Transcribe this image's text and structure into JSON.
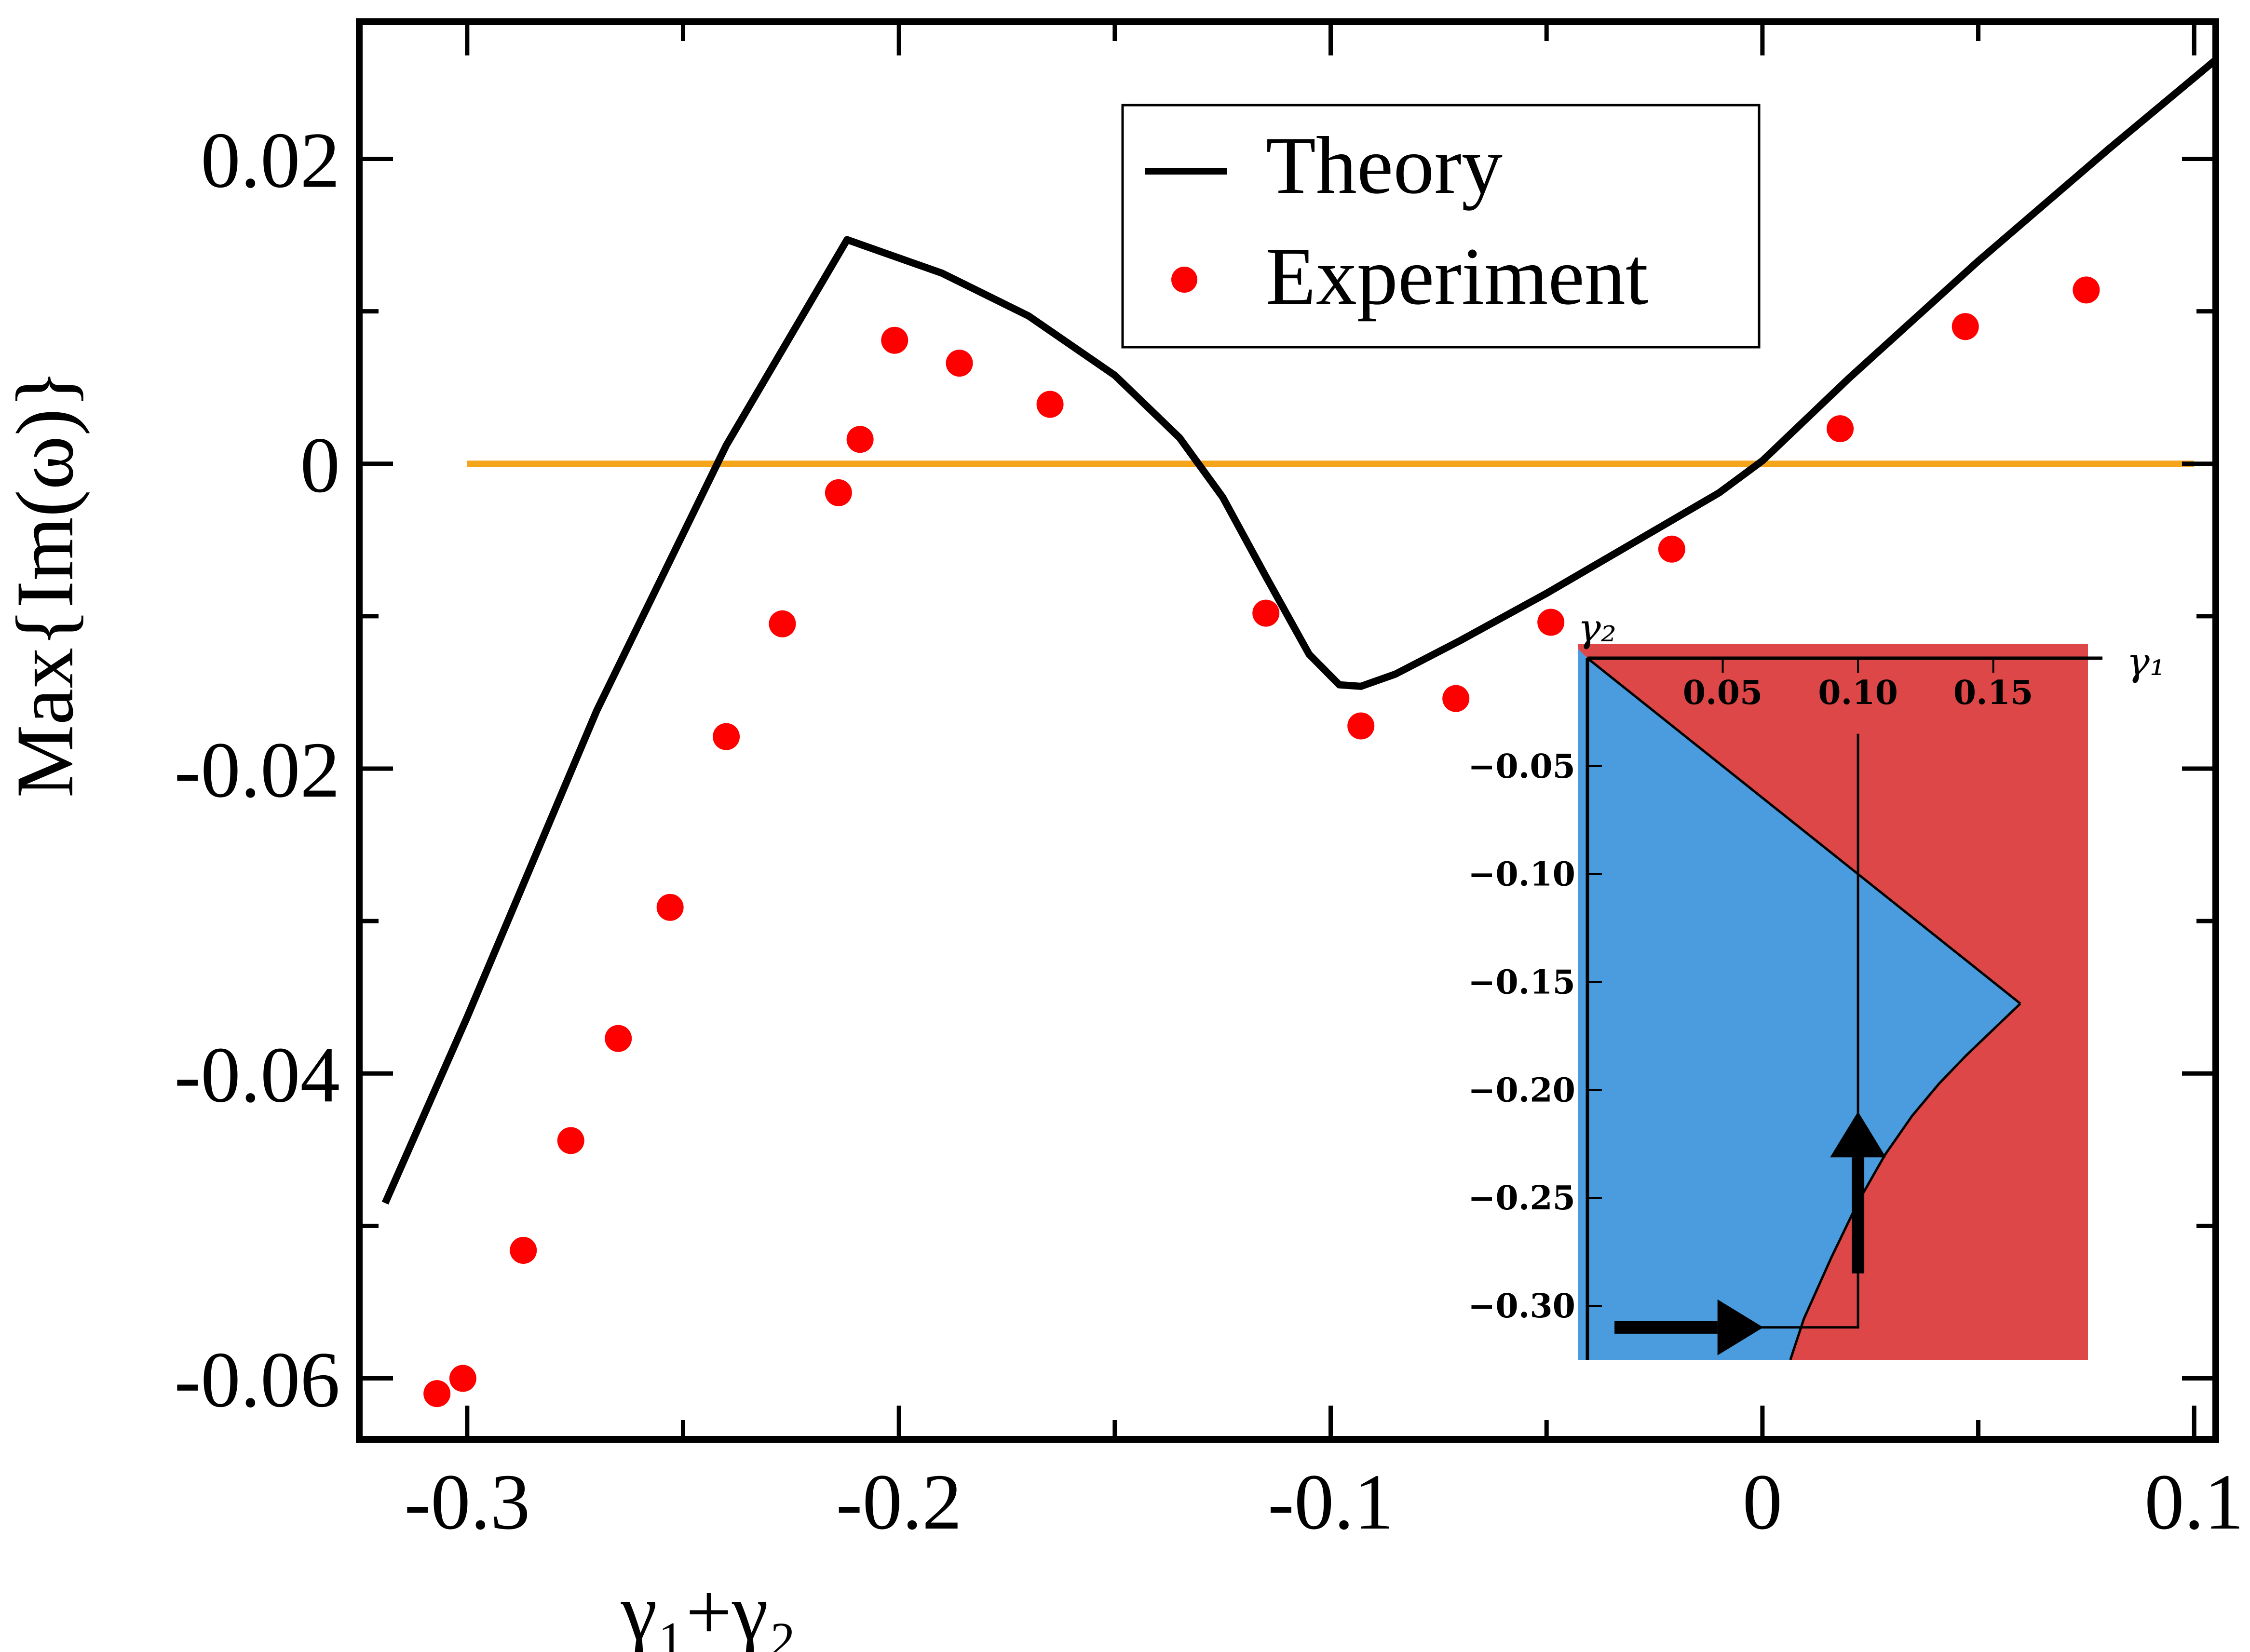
{
  "chart_data": {
    "type": "line",
    "title": "",
    "xlabel": "γ₁+γ₂",
    "ylabel": "Max{Im(ω)}",
    "xlim": [
      -0.325,
      0.105
    ],
    "ylim": [
      -0.064,
      0.029
    ],
    "xticks": [
      -0.3,
      -0.2,
      -0.1,
      0,
      0.1
    ],
    "xtick_labels": [
      "-0.3",
      "-0.2",
      "-0.1",
      "0",
      "0.1"
    ],
    "yticks": [
      -0.06,
      -0.04,
      -0.02,
      0,
      0.02
    ],
    "ytick_labels": [
      "-0.06",
      "-0.04",
      "-0.02",
      "0",
      "0.02"
    ],
    "zero_line": {
      "y": 0,
      "color": "#f4a51c"
    },
    "legend": {
      "position": "top-right",
      "entries": [
        {
          "label": "Theory",
          "style": "line",
          "color": "#000000"
        },
        {
          "label": "Experiment",
          "style": "marker",
          "color": "#ff0000"
        }
      ]
    },
    "series": [
      {
        "name": "Theory",
        "type": "line",
        "color": "#000000",
        "x": [
          -0.319,
          -0.3,
          -0.27,
          -0.24,
          -0.212,
          -0.19,
          -0.17,
          -0.15,
          -0.135,
          -0.125,
          -0.115,
          -0.105,
          -0.098,
          -0.093,
          -0.085,
          -0.07,
          -0.05,
          -0.03,
          -0.01,
          0,
          0.02,
          0.05,
          0.08,
          0.105
        ],
        "y": [
          -0.0485,
          -0.0363,
          -0.0162,
          0.0012,
          0.0147,
          0.0125,
          0.0097,
          0.0058,
          0.0017,
          -0.0022,
          -0.0074,
          -0.0125,
          -0.0145,
          -0.0146,
          -0.0138,
          -0.0116,
          -0.0085,
          -0.0052,
          -0.0019,
          0.0002,
          0.0056,
          0.0133,
          0.0206,
          0.0265
        ]
      },
      {
        "name": "Experiment",
        "type": "scatter",
        "color": "#ff0000",
        "x": [
          -0.307,
          -0.301,
          -0.287,
          -0.276,
          -0.265,
          -0.253,
          -0.24,
          -0.227,
          -0.214,
          -0.209,
          -0.201,
          -0.186,
          -0.165,
          -0.115,
          -0.093,
          -0.071,
          -0.049,
          -0.021,
          0.018,
          0.047,
          0.075
        ],
        "y": [
          -0.061,
          -0.06,
          -0.0516,
          -0.0444,
          -0.0377,
          -0.0291,
          -0.0179,
          -0.0105,
          -0.0019,
          0.0016,
          0.0081,
          0.0066,
          0.0039,
          -0.0098,
          -0.0172,
          -0.0154,
          -0.0104,
          -0.0056,
          0.0023,
          0.009,
          0.0114
        ]
      }
    ],
    "inset": {
      "type": "region-map",
      "xlabel": "γ₁",
      "ylabel": "γ₂",
      "xlim": [
        0,
        0.185
      ],
      "ylim": [
        -0.325,
        0
      ],
      "xticks": [
        0.05,
        0.1,
        0.15
      ],
      "xtick_labels": [
        "0.05",
        "0.10",
        "0.15"
      ],
      "yticks": [
        -0.05,
        -0.1,
        -0.15,
        -0.2,
        -0.25,
        -0.3
      ],
      "ytick_labels": [
        "−0.05",
        "−0.10",
        "−0.15",
        "−0.20",
        "−0.25",
        "−0.30"
      ],
      "stable_color": "#4a9cde",
      "unstable_color": "#de4747",
      "boundary_upper": {
        "x": [
          0,
          0.16
        ],
        "y": [
          0,
          -0.16
        ]
      },
      "boundary_lower": {
        "x": [
          0.16,
          0.15,
          0.14,
          0.13,
          0.12,
          0.11,
          0.1,
          0.09,
          0.08,
          0.075
        ],
        "y": [
          -0.16,
          -0.172,
          -0.184,
          -0.197,
          -0.212,
          -0.23,
          -0.252,
          -0.278,
          -0.306,
          -0.325
        ]
      },
      "path": {
        "x": [
          0.01,
          0.1,
          0.1
        ],
        "y": [
          -0.31,
          -0.31,
          -0.035
        ]
      },
      "arrows": [
        {
          "from": [
            0.01,
            -0.31
          ],
          "to": [
            0.065,
            -0.31
          ]
        },
        {
          "from": [
            0.1,
            -0.285
          ],
          "to": [
            0.1,
            -0.21
          ]
        }
      ]
    }
  }
}
